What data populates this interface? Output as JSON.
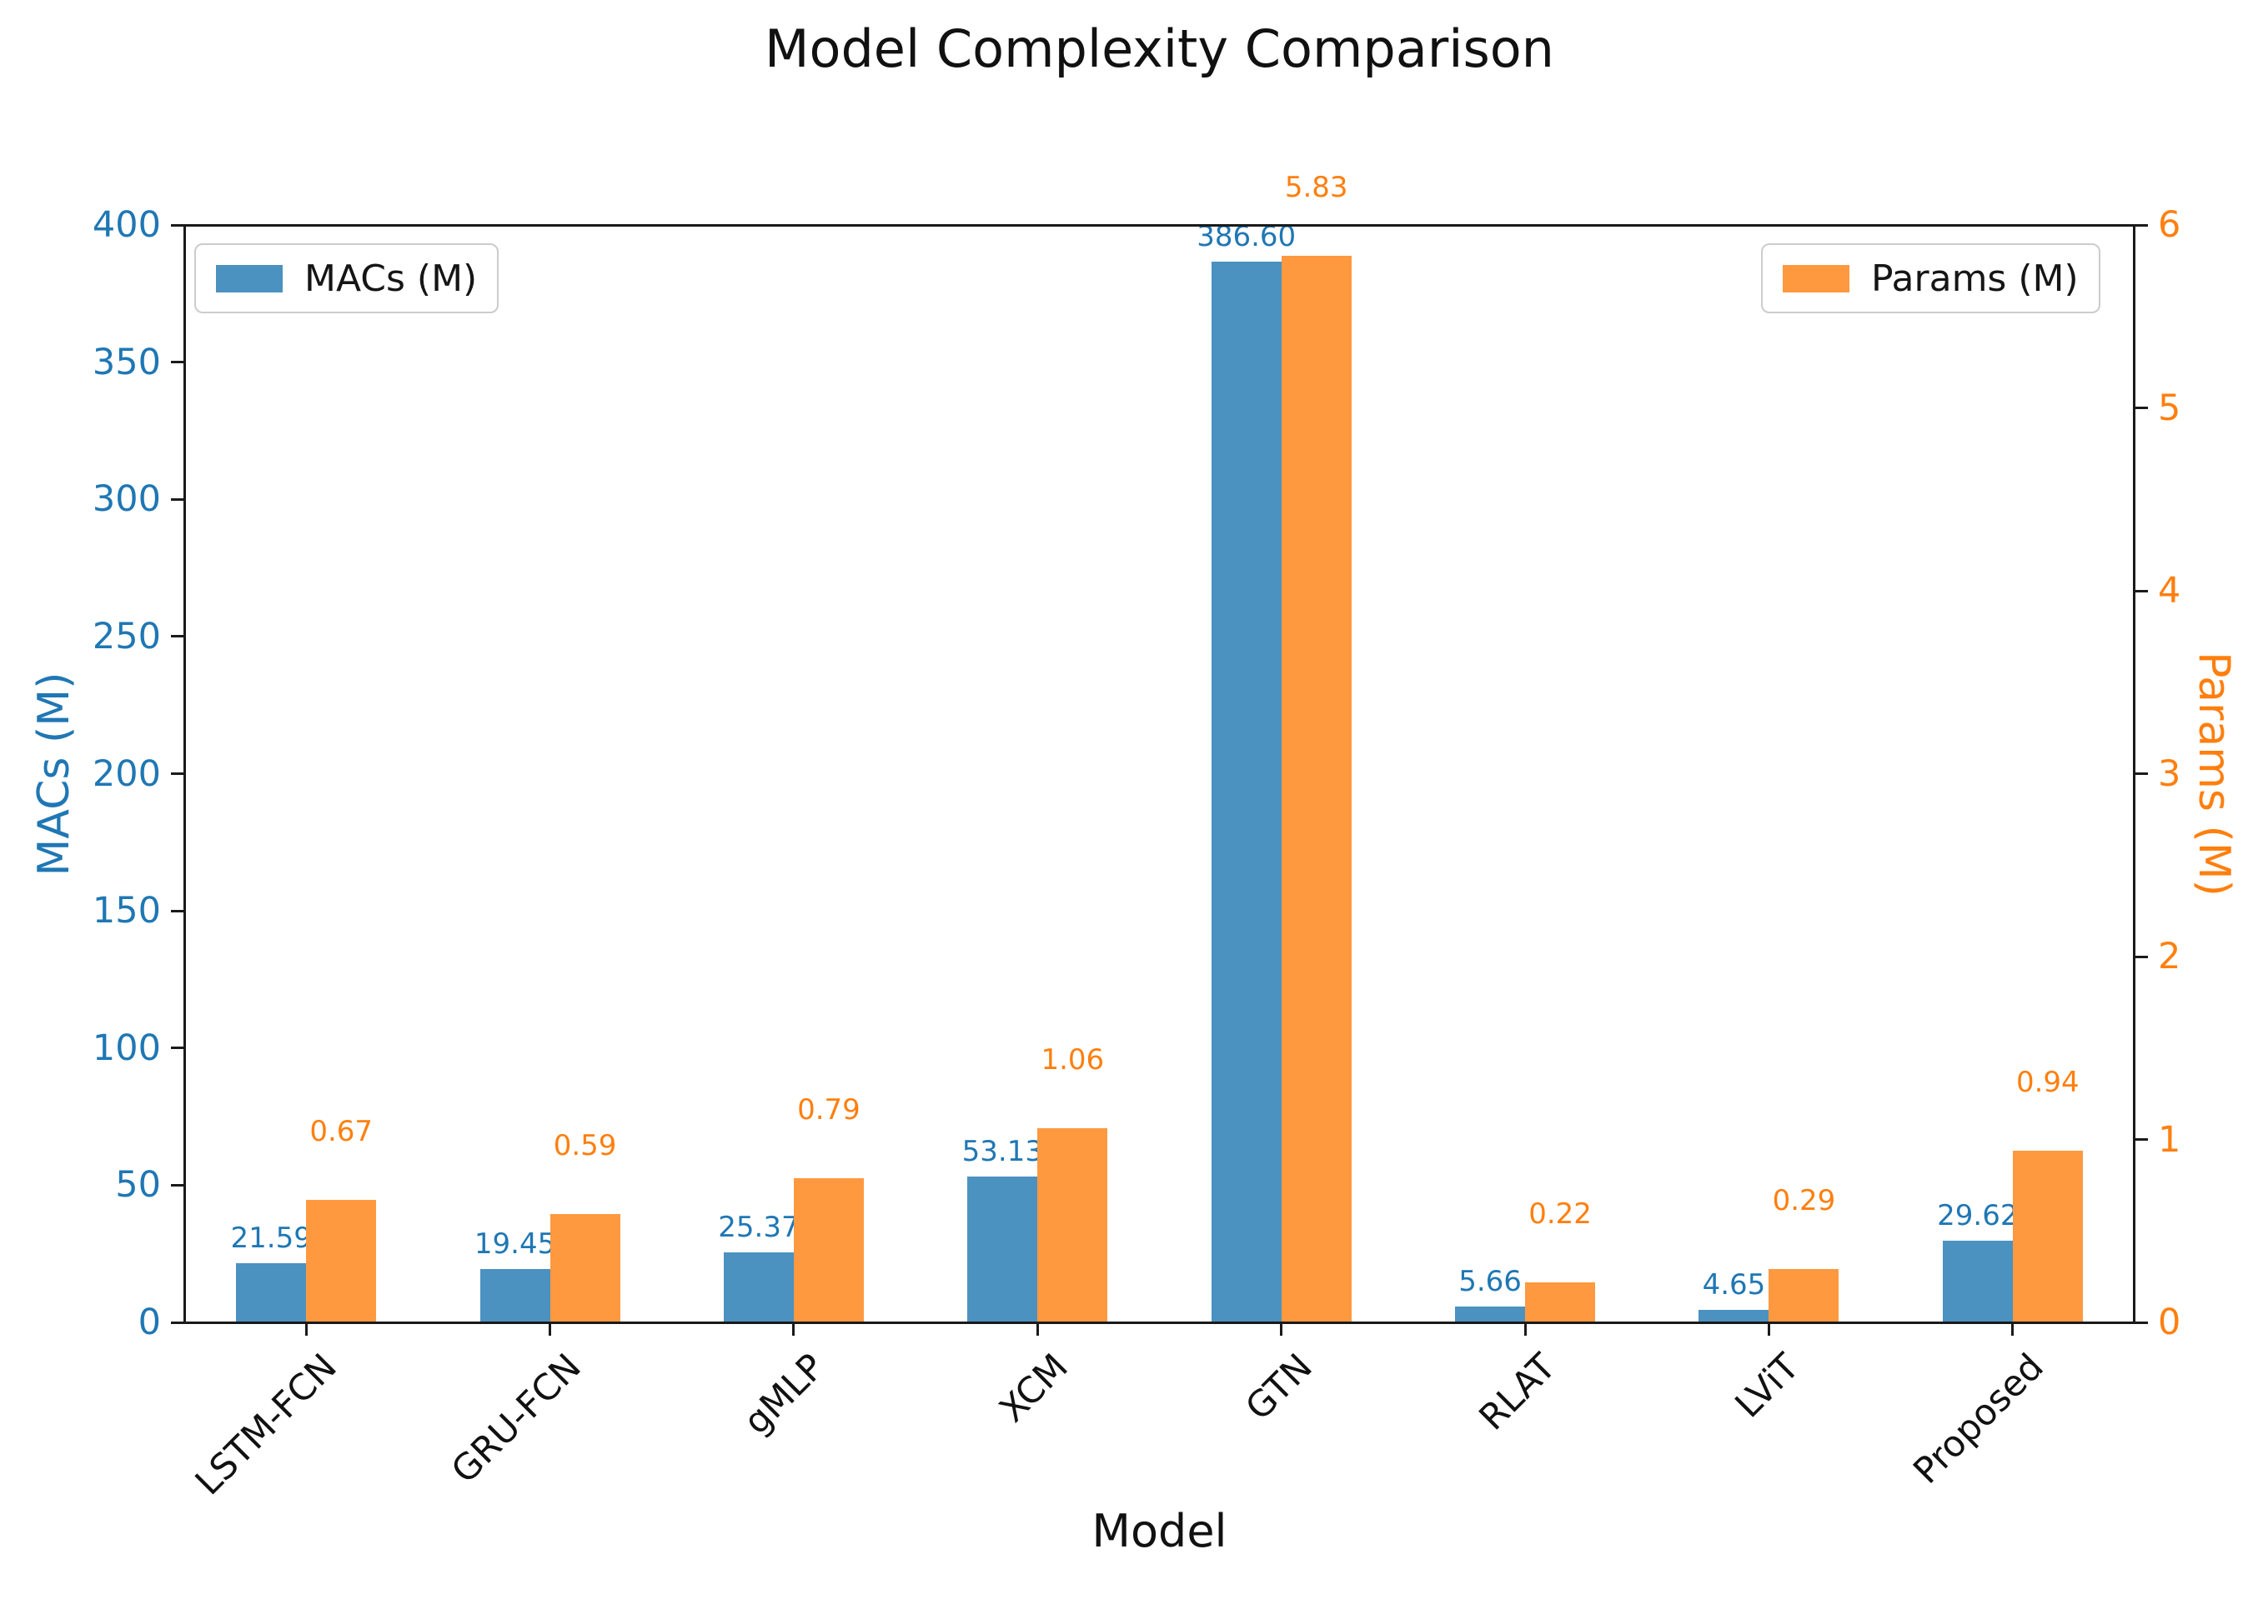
{
  "title": "Model Complexity Comparison",
  "chart_data": {
    "type": "bar",
    "title": "Model Complexity Comparison",
    "xlabel": "Model",
    "categories": [
      "LSTM-FCN",
      "GRU-FCN",
      "gMLP",
      "XCM",
      "GTN",
      "RLAT",
      "LViT",
      "Proposed"
    ],
    "series": [
      {
        "name": "MACs (M)",
        "axis": "left",
        "values": [
          21.59,
          19.45,
          25.37,
          53.13,
          386.6,
          5.66,
          4.65,
          29.62
        ],
        "bar_color": "#4b92c1",
        "label_color": "#1f77b4"
      },
      {
        "name": "Params (M)",
        "axis": "right",
        "values": [
          0.67,
          0.59,
          0.79,
          1.06,
          5.83,
          0.22,
          0.29,
          0.94
        ],
        "bar_color": "#ff9940",
        "label_color": "#ff7f0e"
      }
    ],
    "left_axis": {
      "label": "MACs (M)",
      "min": 0,
      "max": 400,
      "ticks": [
        0,
        50,
        100,
        150,
        200,
        250,
        300,
        350,
        400
      ],
      "color": "#1f77b4"
    },
    "right_axis": {
      "label": "Params (M)",
      "min": 0,
      "max": 6,
      "ticks": [
        0,
        1,
        2,
        3,
        4,
        5,
        6
      ],
      "color": "#ff7f0e"
    },
    "value_label_decimals": 2,
    "grid": false,
    "legend_position": "top-left (MACs) and top-right (Params) inside plot"
  }
}
